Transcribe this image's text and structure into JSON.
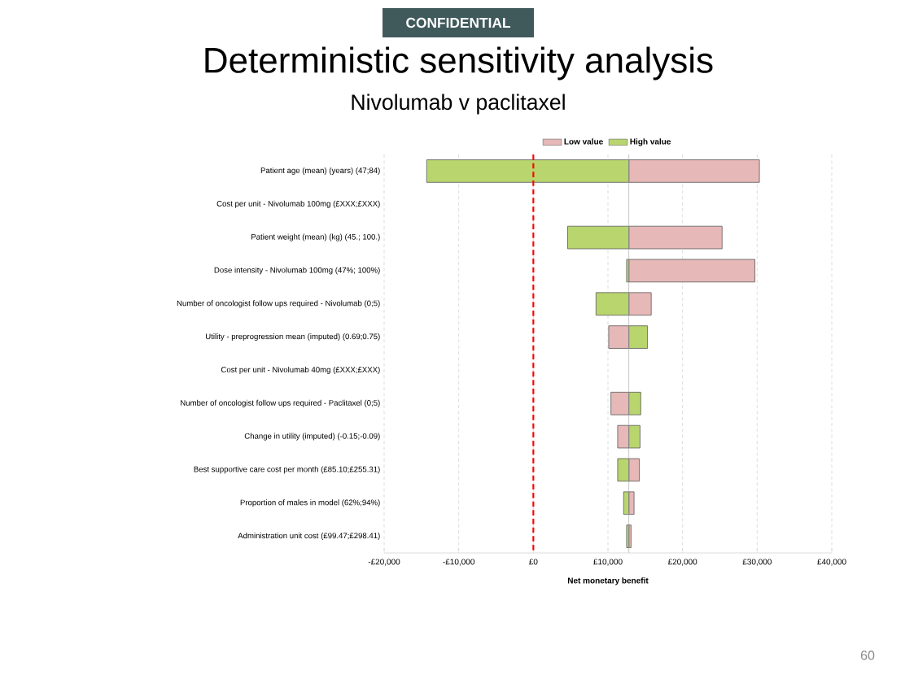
{
  "chart_data": {
    "type": "bar",
    "orientation": "horizontal",
    "title": "Deterministic sensitivity analysis",
    "subtitle": "Nivolumab v paclitaxel",
    "xlabel": "Net monetary benefit",
    "annotations": [
      "CONFIDENTIAL",
      "60"
    ],
    "categories": [
      "Patient age (mean) (years) (47;84)",
      "Cost per unit - Nivolumab 100mg (£XXX;£XXX)",
      "Patient weight (mean) (kg) (45.; 100.)",
      "Dose intensity - Nivolumab 100mg (47%; 100%)",
      "Number of oncologist follow ups required - Nivolumab (0;5)",
      "Utility - preprogression mean (imputed) (0.69;0.75)",
      "Cost per unit - Nivolumab 40mg (£XXX;£XXX)",
      "Number of oncologist follow ups required - Paclitaxel (0;5)",
      "Change in utility (imputed) (-0.15;-0.09)",
      "Best supportive care cost per month (£85.10;£255.31)",
      "Proportion of males in model (62%;94%)",
      "Administration unit cost  (£99.47;£298.41)"
    ],
    "series": [
      {
        "name": "Low value",
        "color": "#e6b8b7",
        "base": [
          12800,
          null,
          12800,
          12800,
          12800,
          12800,
          null,
          12800,
          12800,
          12800,
          12800,
          12800
        ],
        "values": [
          17500,
          null,
          12500,
          16900,
          3000,
          -2700,
          null,
          -2400,
          -1500,
          1400,
          700,
          300
        ]
      },
      {
        "name": "High value",
        "color": "#b8d56e",
        "base": [
          12800,
          null,
          12800,
          12800,
          12800,
          12800,
          null,
          12800,
          12800,
          12800,
          12800,
          12800
        ],
        "values": [
          -27100,
          null,
          -8200,
          -300,
          -4400,
          2500,
          null,
          1600,
          1500,
          -1500,
          -700,
          -300
        ]
      }
    ],
    "xlim": [
      -20000,
      40000
    ],
    "xticks": [
      {
        "value": -20000,
        "label": "-£20,000"
      },
      {
        "value": -10000,
        "label": "-£10,000"
      },
      {
        "value": 0,
        "label": "£0"
      },
      {
        "value": 10000,
        "label": "£10,000"
      },
      {
        "value": 20000,
        "label": "£20,000"
      },
      {
        "value": 30000,
        "label": "£30,000"
      },
      {
        "value": 40000,
        "label": "£40,000"
      }
    ],
    "ref_lines": [
      {
        "axis": "x",
        "value": 0,
        "color": "#ff0000",
        "line_style": "dashed"
      },
      {
        "axis": "x",
        "value": 12800,
        "color": "#a0a0a0",
        "line_style": "solid"
      }
    ],
    "grid": "x",
    "legend": "top"
  }
}
